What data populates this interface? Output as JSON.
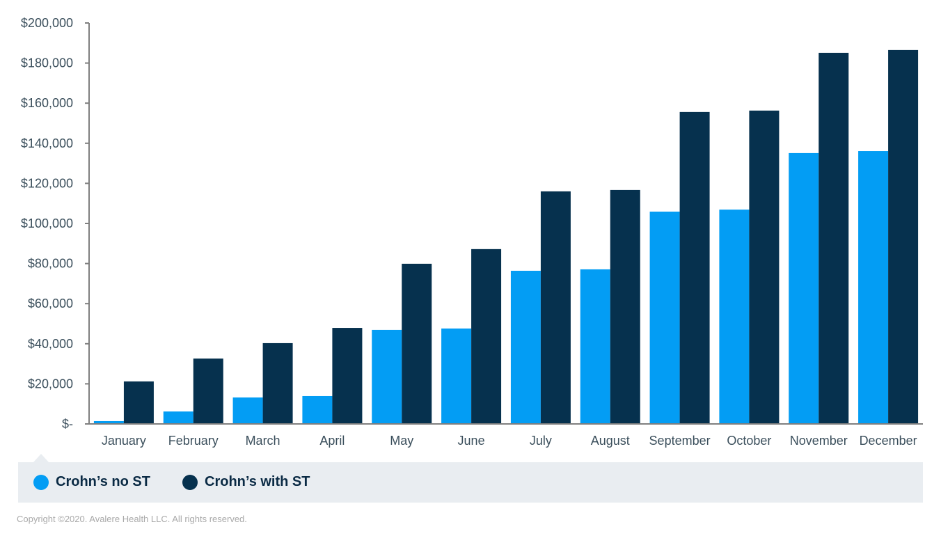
{
  "chart_data": {
    "type": "bar",
    "title": "",
    "xlabel": "",
    "ylabel": "",
    "ylim": [
      0,
      200000
    ],
    "yticks": [
      0,
      20000,
      40000,
      60000,
      80000,
      100000,
      120000,
      140000,
      160000,
      180000,
      200000
    ],
    "ytick_labels": [
      "$-",
      "$20,000",
      "$40,000",
      "$60,000",
      "$80,000",
      "$100,000",
      "$120,000",
      "$140,000",
      "$160,000",
      "$180,000",
      "$200,000"
    ],
    "grid": false,
    "legend_position": "bottom",
    "categories": [
      "January",
      "February",
      "March",
      "April",
      "May",
      "June",
      "July",
      "August",
      "September",
      "October",
      "November",
      "December"
    ],
    "series": [
      {
        "name": "Crohn’s no ST",
        "color": "#039df4",
        "values": [
          1400,
          6200,
          13200,
          13900,
          46900,
          47600,
          76400,
          77100,
          105900,
          106900,
          135100,
          136100
        ]
      },
      {
        "name": "Crohn’s with ST",
        "color": "#06314e",
        "values": [
          21200,
          32600,
          40300,
          47900,
          79900,
          87200,
          116000,
          116700,
          155600,
          156300,
          185100,
          186500
        ]
      }
    ]
  },
  "legend": {
    "items": [
      {
        "label": "Crohn’s no ST",
        "color": "#039df4"
      },
      {
        "label": "Crohn’s with ST",
        "color": "#06314e"
      }
    ]
  },
  "footer": {
    "copyright": "Copyright ©2020. Avalere Health LLC. All rights reserved."
  }
}
